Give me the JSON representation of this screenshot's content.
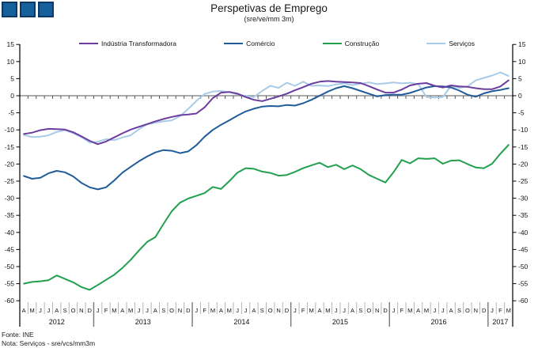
{
  "header": {
    "title": "Perspetivas de Emprego",
    "subtitle": "(sre/ve/mm 3m)"
  },
  "footer": {
    "source": "Fonte: INE",
    "note": "Nota: Serviços - sre/vcs/mm3m"
  },
  "colors": {
    "logo_squares": "#16619c",
    "logo_border": "#0d3a63",
    "zero_line": "#8f8f8f",
    "axis": "#000000"
  },
  "chart_data": {
    "type": "line",
    "title": "Perspetivas de Emprego",
    "subtitle": "(sre/ve/mm 3m)",
    "ylim": [
      -60,
      15
    ],
    "ytick_step": 5,
    "grid": "zero-line-only",
    "legend_position": "top",
    "x_month_letters": [
      "A",
      "M",
      "J",
      "J",
      "A",
      "S",
      "O",
      "N",
      "D",
      "J",
      "F",
      "M",
      "A",
      "M",
      "J",
      "J",
      "A",
      "S",
      "O",
      "N",
      "D",
      "J",
      "F",
      "M",
      "A",
      "M",
      "J",
      "J",
      "A",
      "S",
      "O",
      "N",
      "D",
      "J",
      "F",
      "M",
      "A",
      "M",
      "J",
      "J",
      "A",
      "S",
      "O",
      "N",
      "D",
      "J",
      "F",
      "M",
      "A",
      "M",
      "J",
      "J",
      "A",
      "S",
      "O",
      "N",
      "D",
      "J",
      "F",
      "M"
    ],
    "x_years": [
      {
        "label": "2012",
        "months": 9
      },
      {
        "label": "2013",
        "months": 12
      },
      {
        "label": "2014",
        "months": 12
      },
      {
        "label": "2015",
        "months": 12
      },
      {
        "label": "2016",
        "months": 12
      },
      {
        "label": "2017",
        "months": 3
      }
    ],
    "series": [
      {
        "name": "Indústria Transformadora",
        "color": "#6a3d9e",
        "values": [
          -11.2,
          -10.8,
          -10.1,
          -9.7,
          -9.8,
          -9.9,
          -10.7,
          -11.9,
          -13.2,
          -14.2,
          -13.4,
          -12.2,
          -11.0,
          -9.9,
          -9.1,
          -8.3,
          -7.5,
          -6.8,
          -6.2,
          -5.7,
          -5.5,
          -5.2,
          -3.4,
          -0.7,
          0.9,
          1.1,
          0.6,
          -0.4,
          -1.2,
          -1.6,
          -0.9,
          -0.2,
          0.6,
          1.6,
          2.5,
          3.5,
          4.1,
          4.3,
          4.1,
          4.0,
          3.9,
          3.7,
          2.8,
          1.8,
          0.9,
          0.9,
          1.8,
          3.0,
          3.5,
          3.7,
          2.9,
          2.4,
          3.0,
          2.7,
          2.6,
          2.2,
          1.9,
          1.9,
          2.7,
          4.5
        ]
      },
      {
        "name": "Comércio",
        "color": "#1f5c99",
        "values": [
          -23.5,
          -24.3,
          -24.0,
          -22.7,
          -22.0,
          -22.4,
          -23.6,
          -25.5,
          -26.8,
          -27.4,
          -26.8,
          -24.8,
          -22.5,
          -20.8,
          -19.2,
          -17.8,
          -16.6,
          -15.9,
          -16.1,
          -16.8,
          -16.3,
          -14.5,
          -12.0,
          -10.0,
          -8.5,
          -7.2,
          -5.8,
          -4.6,
          -3.8,
          -3.2,
          -3.0,
          -3.1,
          -2.7,
          -2.9,
          -2.2,
          -1.2,
          0.0,
          1.2,
          2.2,
          2.8,
          2.2,
          1.4,
          0.6,
          -0.2,
          0.2,
          0.3,
          0.3,
          0.8,
          1.6,
          2.4,
          2.8,
          2.7,
          2.4,
          1.5,
          0.3,
          -0.3,
          0.7,
          1.3,
          1.7,
          2.2
        ]
      },
      {
        "name": "Construção",
        "color": "#21a04e",
        "values": [
          -55.0,
          -54.5,
          -54.3,
          -54.0,
          -52.6,
          -53.6,
          -54.6,
          -56.0,
          -56.8,
          -55.4,
          -53.9,
          -52.4,
          -50.4,
          -48.0,
          -45.3,
          -42.8,
          -41.4,
          -37.5,
          -33.8,
          -31.3,
          -30.1,
          -29.3,
          -28.5,
          -26.7,
          -27.3,
          -25.0,
          -22.5,
          -21.2,
          -21.4,
          -22.2,
          -22.6,
          -23.4,
          -23.2,
          -22.3,
          -21.2,
          -20.4,
          -19.6,
          -20.9,
          -20.2,
          -21.5,
          -20.4,
          -21.5,
          -23.2,
          -24.3,
          -25.4,
          -22.4,
          -18.8,
          -19.8,
          -18.3,
          -18.5,
          -18.3,
          -19.9,
          -19.0,
          -18.9,
          -20.0,
          -21.0,
          -21.2,
          -19.9,
          -17.0,
          -14.4
        ]
      },
      {
        "name": "Serviços",
        "color": "#a8cbe8",
        "values": [
          -11.5,
          -12.1,
          -12.0,
          -11.6,
          -10.6,
          -10.1,
          -11.0,
          -12.1,
          -13.7,
          -13.5,
          -12.7,
          -13.0,
          -12.2,
          -11.6,
          -9.8,
          -8.4,
          -7.9,
          -7.5,
          -7.2,
          -6.0,
          -3.9,
          -1.5,
          0.5,
          1.2,
          1.4,
          1.0,
          0.4,
          -0.1,
          -0.4,
          1.4,
          2.9,
          2.3,
          3.8,
          2.9,
          4.1,
          2.9,
          3.0,
          2.8,
          3.3,
          3.6,
          3.1,
          3.5,
          3.9,
          3.4,
          3.6,
          3.9,
          3.6,
          3.8,
          3.4,
          -0.4,
          -0.5,
          -0.4,
          2.9,
          2.3,
          2.7,
          4.5,
          5.2,
          5.9,
          6.8,
          5.8
        ]
      }
    ]
  }
}
